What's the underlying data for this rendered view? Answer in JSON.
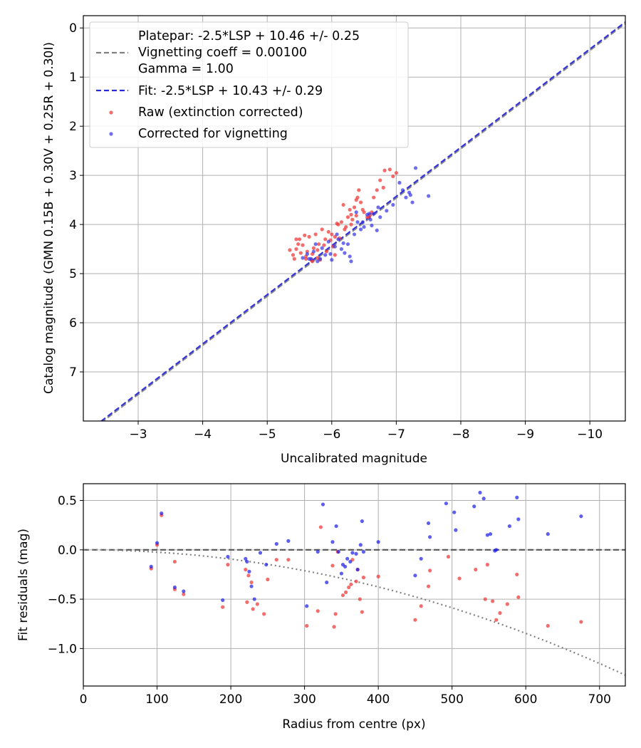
{
  "chart_data": [
    {
      "type": "scatter",
      "xlabel": "Uncalibrated magnitude",
      "ylabel": "Catalog magnitude (GMN 0.15B + 0.30V + 0.25R + 0.30I)",
      "xlim": [
        -2.15,
        -10.55
      ],
      "ylim": [
        8.0,
        -0.25
      ],
      "xticks": [
        -3,
        -4,
        -5,
        -6,
        -7,
        -8,
        -9,
        -10
      ],
      "xtick_labels": [
        "−3",
        "−4",
        "−5",
        "−6",
        "−7",
        "−8",
        "−9",
        "−10"
      ],
      "yticks": [
        0,
        1,
        2,
        3,
        4,
        5,
        6,
        7
      ],
      "ytick_labels": [
        "0",
        "1",
        "2",
        "3",
        "4",
        "5",
        "6",
        "7"
      ],
      "grid": true,
      "legend_position": "top-left",
      "legend": {
        "platepar_line1": "Platepar: -2.5*LSP + 10.46 +/- 0.25",
        "platepar_line2": "Vignetting coeff = 0.00100",
        "platepar_line3": "Gamma = 1.00",
        "fit": "Fit: -2.5*LSP + 10.43 +/- 0.29",
        "raw": "Raw (extinction corrected)",
        "corrected": "Corrected for vignetting"
      },
      "lines": [
        {
          "name": "Platepar",
          "slope": 1.0,
          "intercept": 10.46,
          "color": "#808080",
          "style": "dashed"
        },
        {
          "name": "Fit",
          "slope": 1.0,
          "intercept": 10.43,
          "color": "#2a2ad8",
          "style": "dashed"
        }
      ],
      "series": [
        {
          "name": "Raw (extinction corrected)",
          "color": "#f03c3c",
          "x": [
            -5.35,
            -5.4,
            -5.45,
            -5.42,
            -5.55,
            -5.5,
            -5.62,
            -5.6,
            -5.68,
            -5.7,
            -5.72,
            -5.75,
            -5.78,
            -5.8,
            -5.65,
            -5.58,
            -5.52,
            -5.48,
            -5.85,
            -5.9,
            -5.95,
            -6.0,
            -6.05,
            -6.02,
            -6.1,
            -6.15,
            -6.12,
            -6.2,
            -6.25,
            -6.22,
            -6.3,
            -6.35,
            -6.32,
            -6.28,
            -6.4,
            -6.45,
            -6.5,
            -6.55,
            -6.6,
            -6.18,
            -6.08,
            -5.98,
            -6.42,
            -6.38,
            -6.65,
            -6.7,
            -6.75,
            -6.8,
            -6.82,
            -6.9,
            -6.95,
            -7.0,
            -5.82,
            -5.88,
            -5.92,
            -6.38,
            -5.45,
            -5.6,
            -5.7,
            -6.05,
            -6.3,
            -6.48,
            -6.58,
            -6.62,
            -5.78
          ],
          "y": [
            4.52,
            4.62,
            4.5,
            4.7,
            4.42,
            4.3,
            4.55,
            4.65,
            4.72,
            4.6,
            4.48,
            4.2,
            4.68,
            4.4,
            4.25,
            4.22,
            4.58,
            4.4,
            4.1,
            4.3,
            4.15,
            4.2,
            4.25,
            4.45,
            4.0,
            3.95,
            4.28,
            4.1,
            3.85,
            4.05,
            3.8,
            3.65,
            3.9,
            3.7,
            3.45,
            3.55,
            3.75,
            3.85,
            3.8,
            3.6,
            3.98,
            4.32,
            3.3,
            3.5,
            3.45,
            3.3,
            3.1,
            3.25,
            2.9,
            2.88,
            3.02,
            2.95,
            4.72,
            4.42,
            4.55,
            3.82,
            4.3,
            4.7,
            4.75,
            4.62,
            4.0,
            3.7,
            3.85,
            3.75,
            4.52
          ]
        },
        {
          "name": "Corrected for vignetting",
          "color": "#3030e8",
          "x": [
            -5.55,
            -5.62,
            -5.68,
            -5.72,
            -5.78,
            -5.85,
            -5.9,
            -5.95,
            -6.0,
            -6.05,
            -6.1,
            -6.15,
            -6.2,
            -6.25,
            -6.3,
            -6.35,
            -6.4,
            -6.45,
            -6.5,
            -6.55,
            -6.6,
            -6.65,
            -6.7,
            -6.75,
            -6.85,
            -6.95,
            -7.1,
            -7.15,
            -7.2,
            -7.25,
            -7.3,
            -7.5,
            -5.75,
            -5.82,
            -5.98,
            -6.08,
            -6.18,
            -6.28,
            -6.38,
            -6.48,
            -6.58,
            -6.62,
            -6.72,
            -7.22,
            -7.05,
            -5.65
          ],
          "y": [
            4.68,
            4.6,
            4.7,
            4.55,
            4.75,
            4.48,
            4.62,
            4.35,
            4.72,
            4.45,
            4.3,
            4.5,
            4.58,
            4.4,
            4.75,
            4.2,
            3.95,
            4.1,
            4.05,
            3.8,
            3.9,
            3.78,
            4.12,
            3.85,
            3.72,
            3.6,
            3.3,
            3.45,
            3.35,
            3.55,
            2.85,
            3.42,
            4.4,
            4.7,
            4.6,
            4.2,
            4.38,
            4.65,
            3.75,
            3.95,
            3.78,
            4.02,
            3.65,
            3.4,
            3.15,
            4.7
          ]
        }
      ]
    },
    {
      "type": "scatter",
      "xlabel": "Radius from centre (px)",
      "ylabel": "Fit residuals (mag)",
      "xlim": [
        0,
        735
      ],
      "ylim": [
        -1.38,
        0.67
      ],
      "xticks": [
        0,
        100,
        200,
        300,
        400,
        500,
        600,
        700
      ],
      "xtick_labels": [
        "0",
        "100",
        "200",
        "300",
        "400",
        "500",
        "600",
        "700"
      ],
      "yticks": [
        0.5,
        0.0,
        -0.5,
        -1.0
      ],
      "ytick_labels": [
        "0.5",
        "0.0",
        "−0.5",
        "−1.0"
      ],
      "grid": true,
      "lines": [
        {
          "name": "zero",
          "type": "hline",
          "y": 0.0,
          "color": "#555555",
          "style": "dashed"
        },
        {
          "name": "vignetting",
          "type": "curve",
          "coeff": 0.001,
          "offset": -0.03,
          "color": "#808080",
          "style": "dotted"
        }
      ],
      "series": [
        {
          "name": "Raw (extinction corrected)",
          "color": "#f03c3c",
          "x": [
            92,
            106,
            100,
            124,
            124,
            136,
            189,
            196,
            220,
            222,
            224,
            228,
            230,
            236,
            245,
            250,
            262,
            278,
            303,
            318,
            322,
            338,
            340,
            342,
            345,
            352,
            356,
            360,
            363,
            365,
            370,
            372,
            375,
            378,
            380,
            400,
            450,
            458,
            468,
            470,
            495,
            510,
            532,
            545,
            548,
            555,
            560,
            565,
            575,
            588,
            590,
            630,
            675
          ],
          "y": [
            -0.19,
            0.35,
            0.05,
            -0.12,
            -0.4,
            -0.45,
            -0.58,
            -0.15,
            -0.2,
            -0.53,
            -0.26,
            -0.33,
            -0.6,
            -0.55,
            -0.65,
            -0.3,
            -0.1,
            -0.1,
            -0.77,
            -0.62,
            0.23,
            -0.16,
            -0.78,
            -0.65,
            -0.02,
            -0.46,
            -0.43,
            -0.38,
            -0.35,
            -0.1,
            -0.32,
            -0.2,
            -0.5,
            -0.63,
            -0.28,
            -0.27,
            -0.71,
            -0.57,
            -0.37,
            -0.21,
            -0.07,
            -0.29,
            -0.2,
            -0.5,
            -0.15,
            -0.52,
            -0.71,
            -0.64,
            -0.55,
            -0.25,
            -0.48,
            -0.77,
            -0.73
          ]
        },
        {
          "name": "Corrected for vignetting",
          "color": "#1a1ae8",
          "x": [
            92,
            106,
            100,
            124,
            136,
            189,
            196,
            220,
            222,
            225,
            228,
            232,
            240,
            248,
            262,
            278,
            303,
            318,
            325,
            330,
            338,
            343,
            346,
            350,
            352,
            355,
            358,
            362,
            365,
            370,
            372,
            376,
            378,
            380,
            400,
            450,
            458,
            468,
            470,
            492,
            503,
            505,
            530,
            538,
            543,
            548,
            552,
            558,
            560,
            578,
            588,
            590,
            630,
            675
          ],
          "y": [
            -0.17,
            0.37,
            0.07,
            -0.38,
            -0.42,
            -0.51,
            -0.07,
            -0.09,
            -0.12,
            -0.22,
            -0.37,
            -0.5,
            -0.03,
            -0.15,
            0.06,
            0.09,
            -0.57,
            -0.02,
            0.46,
            -0.33,
            0.08,
            0.24,
            -0.02,
            -0.24,
            -0.15,
            -0.17,
            -0.09,
            -0.12,
            -0.03,
            -0.04,
            -0.2,
            0.05,
            0.29,
            -0.02,
            0.08,
            -0.26,
            -0.09,
            0.27,
            0.13,
            0.47,
            0.38,
            0.2,
            0.44,
            0.58,
            0.52,
            0.15,
            0.16,
            -0.01,
            0.0,
            0.24,
            0.53,
            0.31,
            0.16,
            0.34
          ]
        }
      ]
    }
  ]
}
